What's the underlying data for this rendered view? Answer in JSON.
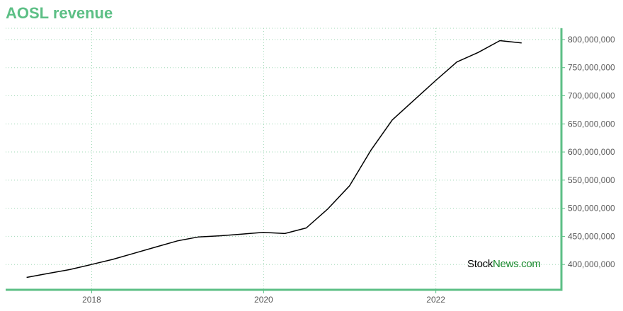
{
  "chart_data": {
    "type": "line",
    "title": "AOSL revenue",
    "xlabel": "",
    "ylabel": "",
    "x_ticks": [
      "2018",
      "2020",
      "2022"
    ],
    "y_ticks": [
      "400,000,000",
      "450,000,000",
      "500,000,000",
      "550,000,000",
      "600,000,000",
      "650,000,000",
      "700,000,000",
      "750,000,000",
      "800,000,000"
    ],
    "y_tick_values": [
      400000000,
      450000000,
      500000000,
      550000000,
      600000000,
      650000000,
      700000000,
      750000000,
      800000000
    ],
    "xlim": [
      "2017-01-01",
      "2023-06-18"
    ],
    "ylim": [
      355000000,
      820000000
    ],
    "grid": true,
    "axis_color": "#5cbf85",
    "line_color": "#000000",
    "series": [
      {
        "x": [
          "2017-03-31",
          "2017-06-30",
          "2017-09-30",
          "2017-12-31",
          "2018-03-31",
          "2018-06-30",
          "2018-09-30",
          "2018-12-31",
          "2019-03-31",
          "2019-06-30",
          "2019-09-30",
          "2019-12-31",
          "2020-03-31",
          "2020-06-30",
          "2020-09-30",
          "2020-12-31",
          "2021-03-31",
          "2021-06-30",
          "2021-09-30",
          "2021-12-31",
          "2022-03-31",
          "2022-06-30",
          "2022-09-30",
          "2022-12-31"
        ],
        "y": [
          377000000,
          384000000,
          391000000,
          400000000,
          409000000,
          420000000,
          431000000,
          442000000,
          449000000,
          451000000,
          454000000,
          457000000,
          455000000,
          465000000,
          499000000,
          540000000,
          603000000,
          657000000,
          692000000,
          727000000,
          760000000,
          777000000,
          798000000,
          794000000
        ]
      }
    ]
  },
  "brand": {
    "part1": "Stock",
    "part2": "News.com"
  }
}
